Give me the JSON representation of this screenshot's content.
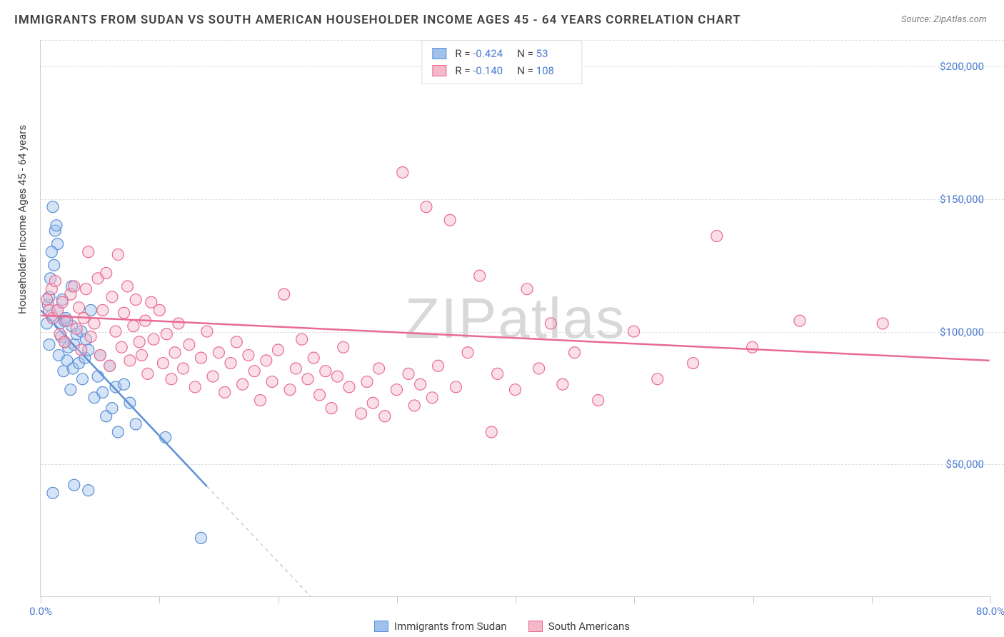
{
  "title": "IMMIGRANTS FROM SUDAN VS SOUTH AMERICAN HOUSEHOLDER INCOME AGES 45 - 64 YEARS CORRELATION CHART",
  "source": "Source: ZipAtlas.com",
  "ylabel": "Householder Income Ages 45 - 64 years",
  "watermark": "ZIPatlas",
  "chart": {
    "type": "scatter-with-trend",
    "xlim": [
      0,
      80
    ],
    "ylim": [
      0,
      210000
    ],
    "x_unit": "%",
    "x_ticks": [
      0,
      10,
      20,
      30,
      40,
      50,
      60,
      70,
      80
    ],
    "x_tick_labels_shown": {
      "0": "0.0%",
      "80": "80.0%"
    },
    "y_gridlines": [
      50000,
      100000,
      150000,
      200000
    ],
    "y_tick_labels": {
      "50000": "$50,000",
      "100000": "$100,000",
      "150000": "$150,000",
      "200000": "$200,000"
    },
    "marker_radius": 8,
    "marker_opacity": 0.45,
    "background_color": "#ffffff",
    "grid_color": "#dcdcdc",
    "axis_label_color": "#4a7bd0",
    "title_fontsize": 17,
    "label_fontsize": 15,
    "series": [
      {
        "name": "Immigrants from Sudan",
        "fill_color": "#9fc1eb",
        "stroke_color": "#5a8fd6",
        "r": "-0.424",
        "n": "53",
        "trend": {
          "x1": 0,
          "y1": 108000,
          "x2": 16,
          "y2": 32000,
          "solid_to_x": 14,
          "extend_dashed": true
        },
        "points": [
          [
            0.5,
            103000
          ],
          [
            0.6,
            110000
          ],
          [
            0.7,
            95000
          ],
          [
            0.8,
            120000
          ],
          [
            0.9,
            106000
          ],
          [
            1.0,
            147000
          ],
          [
            1.2,
            138000
          ],
          [
            1.3,
            140000
          ],
          [
            1.4,
            133000
          ],
          [
            1.5,
            91000
          ],
          [
            1.6,
            103000
          ],
          [
            1.7,
            98000
          ],
          [
            1.8,
            112000
          ],
          [
            1.9,
            85000
          ],
          [
            2.0,
            96000
          ],
          [
            2.1,
            105000
          ],
          [
            2.2,
            89000
          ],
          [
            2.3,
            94000
          ],
          [
            2.5,
            78000
          ],
          [
            2.6,
            102000
          ],
          [
            2.7,
            86000
          ],
          [
            2.8,
            95000
          ],
          [
            3.0,
            99000
          ],
          [
            3.2,
            88000
          ],
          [
            3.4,
            100000
          ],
          [
            3.5,
            82000
          ],
          [
            3.7,
            90000
          ],
          [
            3.8,
            97000
          ],
          [
            4.0,
            93000
          ],
          [
            4.2,
            108000
          ],
          [
            4.5,
            75000
          ],
          [
            4.8,
            83000
          ],
          [
            5.0,
            91000
          ],
          [
            5.2,
            77000
          ],
          [
            5.5,
            68000
          ],
          [
            5.8,
            87000
          ],
          [
            6.0,
            71000
          ],
          [
            6.3,
            79000
          ],
          [
            6.5,
            62000
          ],
          [
            7.0,
            80000
          ],
          [
            7.5,
            73000
          ],
          [
            8.0,
            65000
          ],
          [
            1.0,
            39000
          ],
          [
            2.8,
            42000
          ],
          [
            4.0,
            40000
          ],
          [
            10.5,
            60000
          ],
          [
            13.5,
            22000
          ],
          [
            1.1,
            125000
          ],
          [
            0.9,
            130000
          ],
          [
            2.6,
            117000
          ],
          [
            0.7,
            113000
          ],
          [
            1.4,
            108000
          ],
          [
            2.0,
            104000
          ]
        ]
      },
      {
        "name": "South Americans",
        "fill_color": "#f4b8c9",
        "stroke_color": "#e86a92",
        "r": "-0.140",
        "n": "108",
        "trend": {
          "x1": 0,
          "y1": 106000,
          "x2": 80,
          "y2": 89000,
          "solid_to_x": 80,
          "extend_dashed": false
        },
        "points": [
          [
            0.5,
            112000
          ],
          [
            0.7,
            108000
          ],
          [
            0.9,
            116000
          ],
          [
            1.0,
            105000
          ],
          [
            1.2,
            119000
          ],
          [
            1.4,
            108000
          ],
          [
            1.6,
            99000
          ],
          [
            1.8,
            111000
          ],
          [
            2.0,
            96000
          ],
          [
            2.2,
            104000
          ],
          [
            2.5,
            114000
          ],
          [
            2.8,
            117000
          ],
          [
            3.0,
            101000
          ],
          [
            3.2,
            109000
          ],
          [
            3.4,
            93000
          ],
          [
            3.6,
            105000
          ],
          [
            3.8,
            116000
          ],
          [
            4.0,
            130000
          ],
          [
            4.2,
            98000
          ],
          [
            4.5,
            103000
          ],
          [
            4.8,
            120000
          ],
          [
            5.0,
            91000
          ],
          [
            5.2,
            108000
          ],
          [
            5.5,
            122000
          ],
          [
            5.8,
            87000
          ],
          [
            6.0,
            113000
          ],
          [
            6.3,
            100000
          ],
          [
            6.5,
            129000
          ],
          [
            6.8,
            94000
          ],
          [
            7.0,
            107000
          ],
          [
            7.3,
            117000
          ],
          [
            7.5,
            89000
          ],
          [
            7.8,
            102000
          ],
          [
            8.0,
            112000
          ],
          [
            8.3,
            96000
          ],
          [
            8.5,
            91000
          ],
          [
            8.8,
            104000
          ],
          [
            9.0,
            84000
          ],
          [
            9.3,
            111000
          ],
          [
            9.5,
            97000
          ],
          [
            10.0,
            108000
          ],
          [
            10.3,
            88000
          ],
          [
            10.6,
            99000
          ],
          [
            11.0,
            82000
          ],
          [
            11.3,
            92000
          ],
          [
            11.6,
            103000
          ],
          [
            12.0,
            86000
          ],
          [
            12.5,
            95000
          ],
          [
            13.0,
            79000
          ],
          [
            13.5,
            90000
          ],
          [
            14.0,
            100000
          ],
          [
            14.5,
            83000
          ],
          [
            15.0,
            92000
          ],
          [
            15.5,
            77000
          ],
          [
            16.0,
            88000
          ],
          [
            16.5,
            96000
          ],
          [
            17.0,
            80000
          ],
          [
            17.5,
            91000
          ],
          [
            18.0,
            85000
          ],
          [
            18.5,
            74000
          ],
          [
            19.0,
            89000
          ],
          [
            19.5,
            81000
          ],
          [
            20.0,
            93000
          ],
          [
            20.5,
            114000
          ],
          [
            21.0,
            78000
          ],
          [
            21.5,
            86000
          ],
          [
            22.0,
            97000
          ],
          [
            22.5,
            82000
          ],
          [
            23.0,
            90000
          ],
          [
            23.5,
            76000
          ],
          [
            24.0,
            85000
          ],
          [
            24.5,
            71000
          ],
          [
            25.0,
            83000
          ],
          [
            25.5,
            94000
          ],
          [
            26.0,
            79000
          ],
          [
            27.0,
            69000
          ],
          [
            27.5,
            81000
          ],
          [
            28.0,
            73000
          ],
          [
            28.5,
            86000
          ],
          [
            29.0,
            68000
          ],
          [
            30.0,
            78000
          ],
          [
            30.5,
            160000
          ],
          [
            31.0,
            84000
          ],
          [
            31.5,
            72000
          ],
          [
            32.0,
            80000
          ],
          [
            32.5,
            147000
          ],
          [
            33.0,
            75000
          ],
          [
            33.5,
            87000
          ],
          [
            34.5,
            142000
          ],
          [
            35.0,
            79000
          ],
          [
            36.0,
            92000
          ],
          [
            37.0,
            121000
          ],
          [
            38.0,
            62000
          ],
          [
            38.5,
            84000
          ],
          [
            40.0,
            78000
          ],
          [
            41.0,
            116000
          ],
          [
            42.0,
            86000
          ],
          [
            43.0,
            103000
          ],
          [
            44.0,
            80000
          ],
          [
            45.0,
            92000
          ],
          [
            47.0,
            74000
          ],
          [
            50.0,
            100000
          ],
          [
            52.0,
            82000
          ],
          [
            55.0,
            88000
          ],
          [
            57.0,
            136000
          ],
          [
            60.0,
            94000
          ],
          [
            64.0,
            104000
          ],
          [
            71.0,
            103000
          ]
        ]
      }
    ]
  },
  "legend_bottom": [
    {
      "label": "Immigrants from Sudan",
      "fill": "#9fc1eb",
      "stroke": "#5a8fd6"
    },
    {
      "label": "South Americans",
      "fill": "#f4b8c9",
      "stroke": "#e86a92"
    }
  ]
}
